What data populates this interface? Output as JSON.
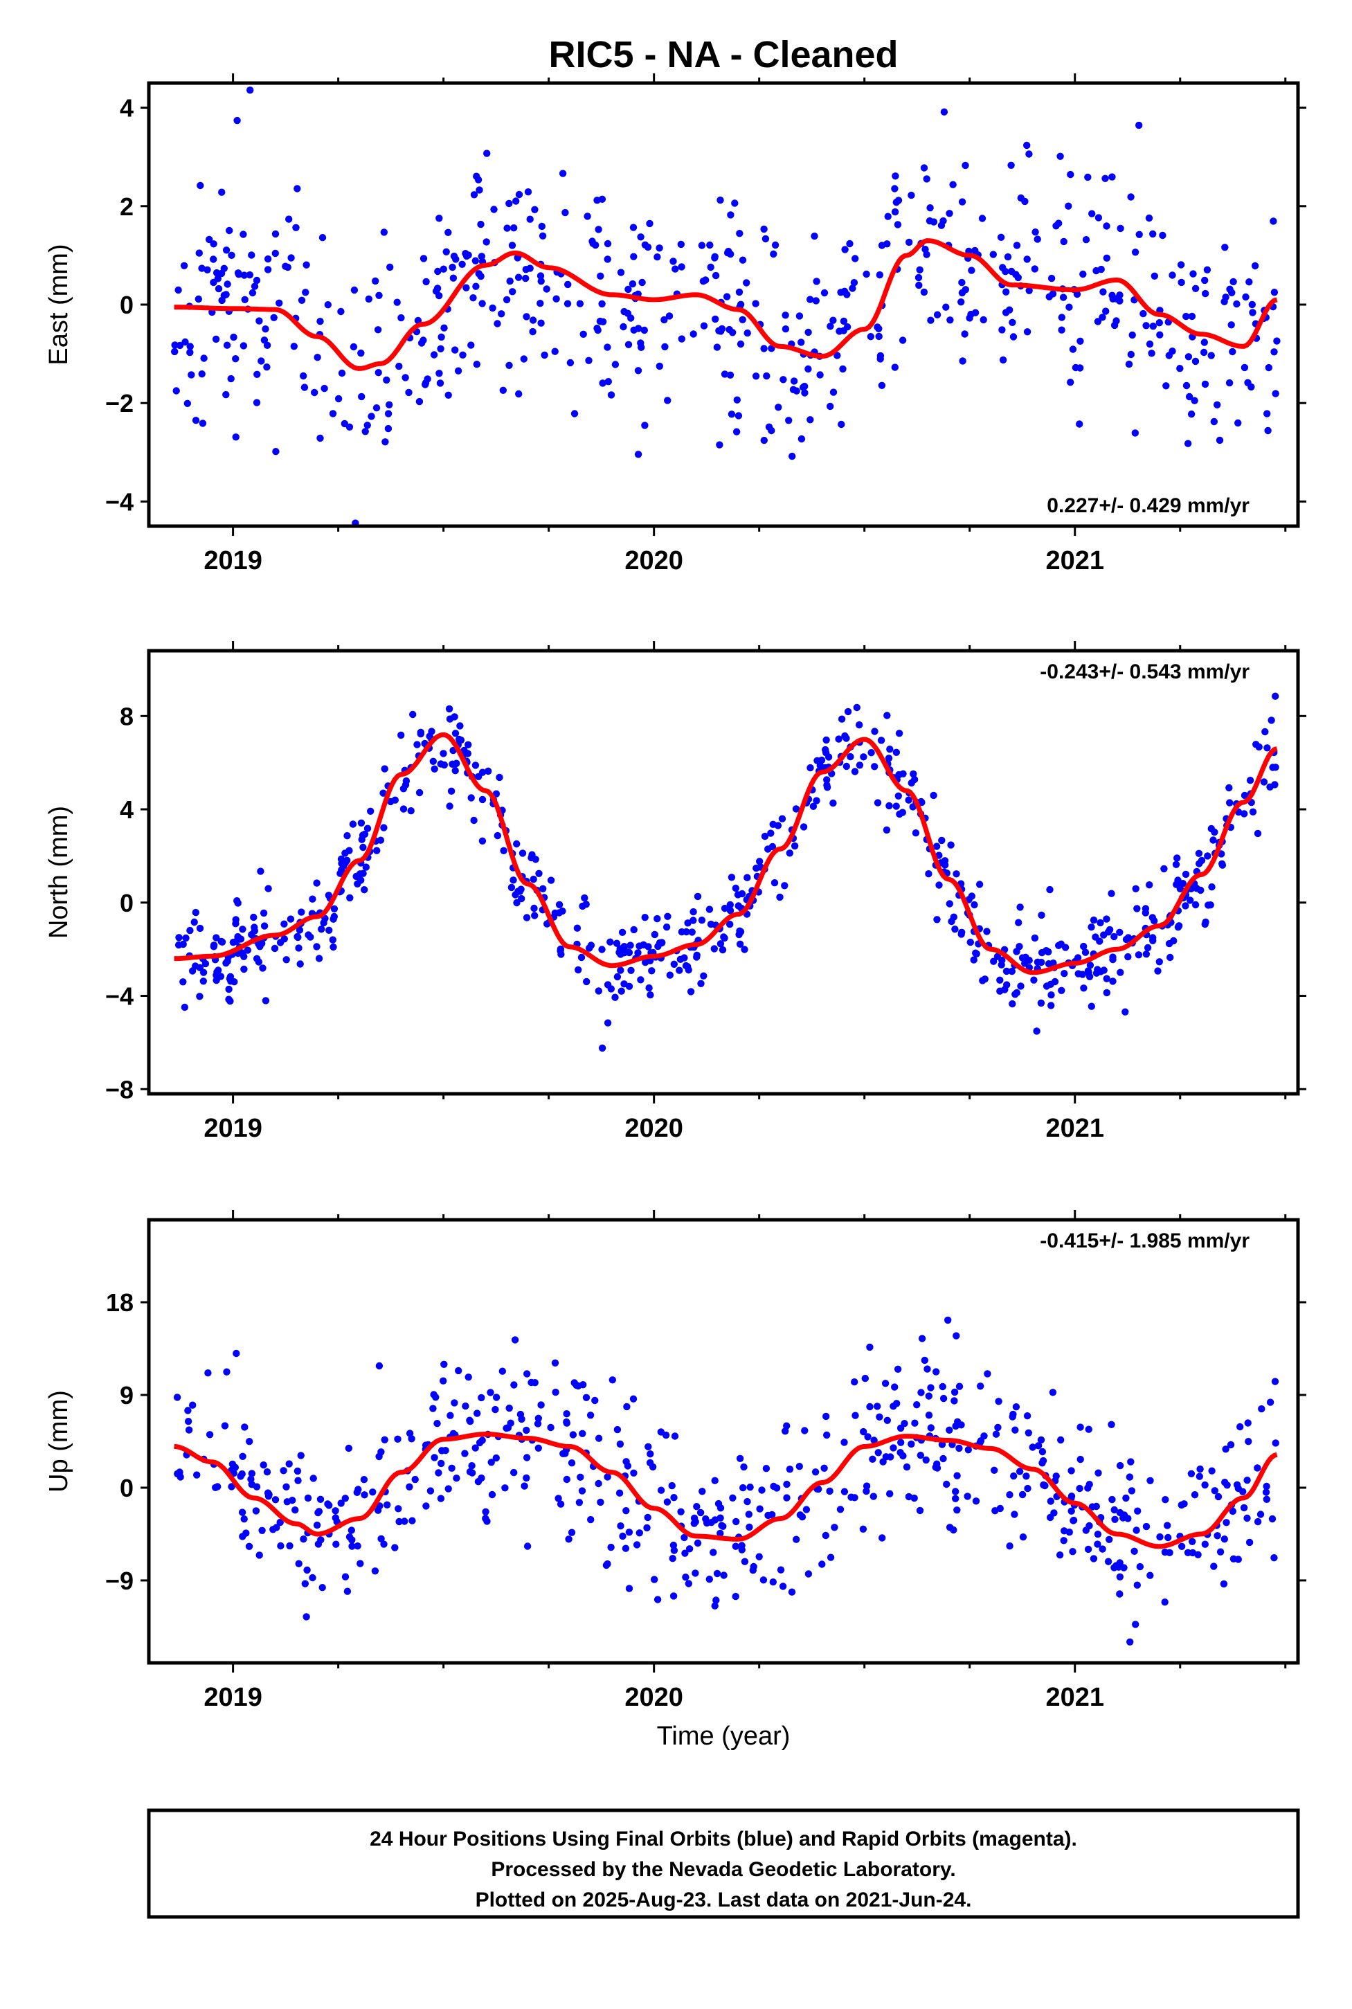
{
  "title": "RIC5  - NA - Cleaned",
  "colors": {
    "points": "#0000ff",
    "fit": "#ff0000",
    "frame": "#000000"
  },
  "footer": {
    "line1": "24 Hour Positions Using Final Orbits (blue) and Rapid Orbits (magenta).",
    "line2": "Processed by the Nevada Geodetic Laboratory.",
    "line3": "Plotted on 2025-Aug-23. Last data on 2021-Jun-24."
  },
  "chart_data": [
    {
      "type": "scatter",
      "ylabel": "East (mm)",
      "xlabel": "",
      "rate_label": "0.227+/- 0.429 mm/yr",
      "rate_position": "bottom-right",
      "xlim": [
        2018.8,
        2021.53
      ],
      "ylim": [
        -4.5,
        4.5
      ],
      "yticks": [
        -4,
        -2,
        0,
        2,
        4
      ],
      "ytick_labels": [
        "−4",
        "−2",
        "0",
        "2",
        "4"
      ],
      "xticks": [
        2019,
        2020,
        2021
      ],
      "xtick_labels": [
        "2019",
        "2020",
        "2021"
      ],
      "grid": false,
      "series": [
        {
          "kind": "points",
          "x_start": 2018.86,
          "x_end": 2021.48,
          "n": 620,
          "trend": 0.227,
          "noise_sd": 1.25,
          "seed": 11
        },
        {
          "kind": "fit",
          "x": [
            2018.86,
            2019.0,
            2019.1,
            2019.2,
            2019.3,
            2019.35,
            2019.45,
            2019.6,
            2019.67,
            2019.75,
            2019.9,
            2020.0,
            2020.1,
            2020.2,
            2020.3,
            2020.4,
            2020.5,
            2020.6,
            2020.65,
            2020.75,
            2020.85,
            2021.0,
            2021.1,
            2021.2,
            2021.3,
            2021.4,
            2021.48
          ],
          "y": [
            -0.05,
            -0.08,
            -0.1,
            -0.65,
            -1.3,
            -1.2,
            -0.4,
            0.8,
            1.05,
            0.75,
            0.2,
            0.1,
            0.2,
            -0.1,
            -0.85,
            -1.05,
            -0.5,
            1.0,
            1.3,
            1.0,
            0.4,
            0.3,
            0.5,
            -0.2,
            -0.6,
            -0.85,
            0.1
          ]
        }
      ]
    },
    {
      "type": "scatter",
      "ylabel": "North (mm)",
      "xlabel": "",
      "rate_label": "-0.243+/- 0.543 mm/yr",
      "rate_position": "top-right",
      "xlim": [
        2018.8,
        2021.53
      ],
      "ylim": [
        -8.2,
        10.8
      ],
      "yticks": [
        -8,
        -4,
        0,
        4,
        8
      ],
      "ytick_labels": [
        "−8",
        "−4",
        "0",
        "4",
        "8"
      ],
      "xticks": [
        2019,
        2020,
        2021
      ],
      "xtick_labels": [
        "2019",
        "2020",
        "2021"
      ],
      "grid": false,
      "series": [
        {
          "kind": "points",
          "x_start": 2018.86,
          "x_end": 2021.48,
          "n": 700,
          "trend": -0.243,
          "noise_sd": 1.0,
          "seed": 23
        },
        {
          "kind": "fit",
          "x": [
            2018.86,
            2018.95,
            2019.1,
            2019.2,
            2019.3,
            2019.4,
            2019.5,
            2019.6,
            2019.7,
            2019.8,
            2019.9,
            2020.0,
            2020.1,
            2020.2,
            2020.3,
            2020.4,
            2020.5,
            2020.6,
            2020.7,
            2020.8,
            2020.9,
            2021.0,
            2021.1,
            2021.2,
            2021.3,
            2021.4,
            2021.48
          ],
          "y": [
            -2.4,
            -2.3,
            -1.4,
            -0.6,
            1.8,
            5.5,
            7.2,
            4.8,
            0.8,
            -1.9,
            -2.7,
            -2.3,
            -1.8,
            -0.5,
            2.3,
            5.6,
            7.0,
            4.8,
            1.0,
            -2.0,
            -3.0,
            -2.6,
            -2.0,
            -1.0,
            1.2,
            4.3,
            6.6
          ]
        }
      ]
    },
    {
      "type": "scatter",
      "ylabel": "Up (mm)",
      "xlabel": "Time (year)",
      "rate_label": "-0.415+/- 1.985 mm/yr",
      "rate_position": "top-right",
      "xlim": [
        2018.8,
        2021.53
      ],
      "ylim": [
        -17,
        26
      ],
      "yticks": [
        -9,
        0,
        9,
        18
      ],
      "ytick_labels": [
        "−9",
        "0",
        "9",
        "18"
      ],
      "xticks": [
        2019,
        2020,
        2021
      ],
      "xtick_labels": [
        "2019",
        "2020",
        "2021"
      ],
      "grid": false,
      "series": [
        {
          "kind": "points",
          "x_start": 2018.86,
          "x_end": 2021.48,
          "n": 620,
          "trend": -0.415,
          "noise_sd": 4.2,
          "seed": 37
        },
        {
          "kind": "fit",
          "x": [
            2018.86,
            2018.95,
            2019.05,
            2019.15,
            2019.2,
            2019.3,
            2019.4,
            2019.5,
            2019.6,
            2019.7,
            2019.8,
            2019.9,
            2020.0,
            2020.1,
            2020.2,
            2020.3,
            2020.4,
            2020.5,
            2020.6,
            2020.7,
            2020.8,
            2020.9,
            2021.0,
            2021.1,
            2021.2,
            2021.3,
            2021.4,
            2021.48
          ],
          "y": [
            4.0,
            2.5,
            -1.0,
            -3.5,
            -4.5,
            -3.0,
            1.5,
            4.7,
            5.2,
            4.8,
            4.0,
            1.5,
            -2.0,
            -4.7,
            -5.0,
            -3.0,
            0.5,
            4.0,
            5.0,
            4.6,
            3.8,
            1.8,
            -1.5,
            -4.5,
            -5.7,
            -4.5,
            -1.0,
            3.2
          ]
        }
      ]
    }
  ]
}
